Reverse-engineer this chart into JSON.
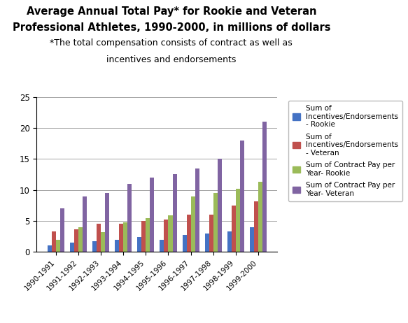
{
  "title_line1": "Average Annual Total Pay* for Rookie and Veteran",
  "title_line2": "Professional Athletes, 1990-2000, in millions of dollars",
  "subtitle_line1": "*The total compensation consists of contract as well as",
  "subtitle_line2": "incentives and endorsements",
  "categories": [
    "1990-1991",
    "1991-1992",
    "1992-1993",
    "1993-1994",
    "1994-1995",
    "1995-1996",
    "1996-1997",
    "1997-1998",
    "1998-1999",
    "1999-2000"
  ],
  "series": {
    "incentives_rookie": [
      1.0,
      1.5,
      1.7,
      2.0,
      2.4,
      2.0,
      2.7,
      3.0,
      3.3,
      4.0
    ],
    "incentives_veteran": [
      3.3,
      3.7,
      4.5,
      4.5,
      5.0,
      5.2,
      6.0,
      6.0,
      7.5,
      8.2
    ],
    "contract_rookie": [
      2.0,
      4.0,
      3.2,
      4.8,
      5.5,
      5.9,
      9.0,
      9.5,
      10.2,
      11.3
    ],
    "contract_veteran": [
      7.0,
      9.0,
      9.5,
      11.0,
      12.0,
      12.5,
      13.5,
      15.0,
      18.0,
      21.0
    ]
  },
  "colors": {
    "incentives_rookie": "#4472C4",
    "incentives_veteran": "#C0504D",
    "contract_rookie": "#9BBB59",
    "contract_veteran": "#8064A2"
  },
  "legend_labels": [
    "Sum of\nIncentives/Endorsements\n- Rookie",
    "Sum of\nIncentives/Endorsements\n- Veteran",
    "Sum of Contract Pay per\nYear- Rookie",
    "Sum of Contract Pay per\nYear- Veteran"
  ],
  "ylim": [
    0,
    25
  ],
  "yticks": [
    0,
    5,
    10,
    15,
    20,
    25
  ],
  "background_color": "#FFFFFF",
  "title_fontsize": 10.5,
  "subtitle_fontsize": 9.0
}
